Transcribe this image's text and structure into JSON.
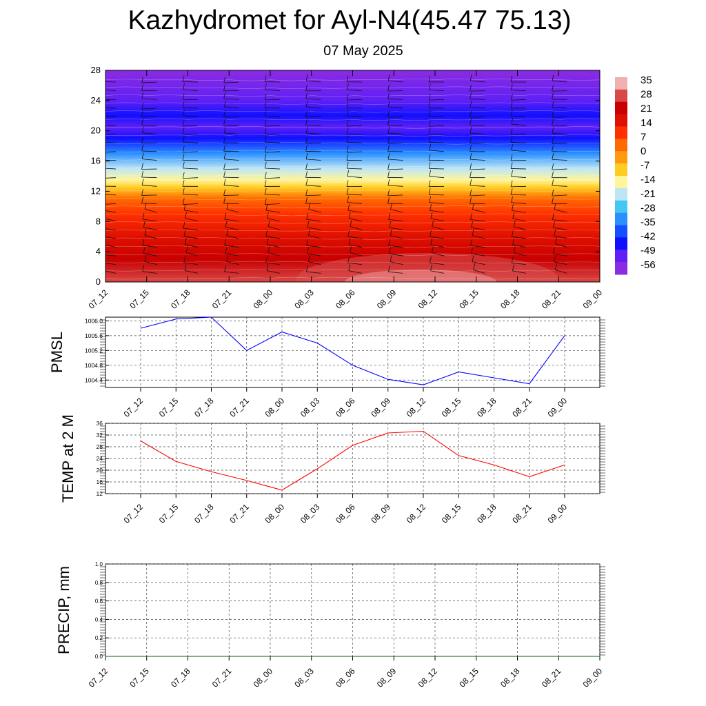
{
  "header": {
    "title": "Kazhydromet for Ayl-N4(45.47 75.13)",
    "subtitle": "07 May 2025"
  },
  "time_labels": [
    "07_12",
    "07_15",
    "07_18",
    "07_21",
    "08_00",
    "08_03",
    "08_06",
    "08_09",
    "08_12",
    "08_15",
    "08_18",
    "08_21",
    "09_00"
  ],
  "colors": {
    "pmsl_line": "#0000ff",
    "temp_line": "#ff0000",
    "precip_line": "#006400",
    "colorbar": [
      "#8b2be2",
      "#6020f5",
      "#1010ff",
      "#1450ff",
      "#2a90ff",
      "#44c8f2",
      "#bde6f5",
      "#fff59a",
      "#ffcc22",
      "#ff9a10",
      "#ff6a00",
      "#ff3000",
      "#e01000",
      "#c80000",
      "#d84848",
      "#f0b0b0"
    ]
  },
  "chart_data": [
    {
      "type": "heatmap",
      "name": "height-time temperature cross-section with wind barbs",
      "title": "",
      "ylim": [
        0,
        28
      ],
      "yticks": [
        0,
        4,
        8,
        12,
        16,
        20,
        24,
        28
      ],
      "x": [
        "07_12",
        "07_15",
        "07_18",
        "07_21",
        "08_00",
        "08_03",
        "08_06",
        "08_09",
        "08_12",
        "08_15",
        "08_18",
        "08_21",
        "09_00"
      ],
      "colorbar_labels": [
        "35",
        "28",
        "21",
        "14",
        "7",
        "0",
        "-7",
        "-14",
        "-21",
        "-28",
        "-35",
        "-42",
        "-49",
        "-56"
      ],
      "profile": [
        {
          "level": 0,
          "value": 30
        },
        {
          "level": 3,
          "value": 25
        },
        {
          "level": 6,
          "value": 18
        },
        {
          "level": 9,
          "value": 10
        },
        {
          "level": 11,
          "value": 3
        },
        {
          "level": 12.5,
          "value": -8
        },
        {
          "level": 13.5,
          "value": -16
        },
        {
          "level": 15,
          "value": -27
        },
        {
          "level": 17,
          "value": -40
        },
        {
          "level": 19,
          "value": -52
        },
        {
          "level": 20.5,
          "value": -56
        },
        {
          "level": 22,
          "value": -50
        },
        {
          "level": 24,
          "value": -58
        },
        {
          "level": 28,
          "value": -60
        }
      ]
    },
    {
      "type": "line",
      "ylabel": "PMSL",
      "ylim": [
        1004.2,
        1006.1
      ],
      "yticks": [
        "1004.4",
        "1004.8",
        "1005.2",
        "1005.6",
        "1006.0"
      ],
      "x": [
        "07_12",
        "07_15",
        "07_18",
        "07_21",
        "08_00",
        "08_03",
        "08_06",
        "08_09",
        "08_12",
        "08_15",
        "08_18",
        "08_21",
        "09_00"
      ],
      "series": [
        {
          "values": [
            1005.8,
            1006.05,
            1006.1,
            1005.2,
            1005.7,
            1005.4,
            1004.8,
            1004.42,
            1004.27,
            1004.62,
            1004.46,
            1004.3,
            1005.6
          ]
        }
      ]
    },
    {
      "type": "line",
      "ylabel": "TEMP at 2 M",
      "ylim": [
        12,
        36
      ],
      "yticks": [
        "12",
        "16",
        "20",
        "24",
        "28",
        "32",
        "36"
      ],
      "x": [
        "07_12",
        "07_15",
        "07_18",
        "07_21",
        "08_00",
        "08_03",
        "08_06",
        "08_09",
        "08_12",
        "08_15",
        "08_18",
        "08_21",
        "09_00"
      ],
      "series": [
        {
          "values": [
            30,
            23,
            19.5,
            16.5,
            13.2,
            20.5,
            28.5,
            32.7,
            33.3,
            25,
            21.8,
            17.8,
            21.8
          ]
        }
      ]
    },
    {
      "type": "line",
      "ylabel": "PRECIP, mm",
      "ylim": [
        0,
        1
      ],
      "yticks": [
        "0.0",
        "0.2",
        "0.4",
        "0.6",
        "0.8",
        "1.0"
      ],
      "x": [
        "07_12",
        "07_15",
        "07_18",
        "07_21",
        "08_00",
        "08_03",
        "08_06",
        "08_09",
        "08_12",
        "08_15",
        "08_18",
        "08_21",
        "09_00"
      ],
      "series": [
        {
          "values": [
            0,
            0,
            0,
            0,
            0,
            0,
            0,
            0,
            0,
            0,
            0,
            0,
            0
          ]
        }
      ]
    }
  ]
}
